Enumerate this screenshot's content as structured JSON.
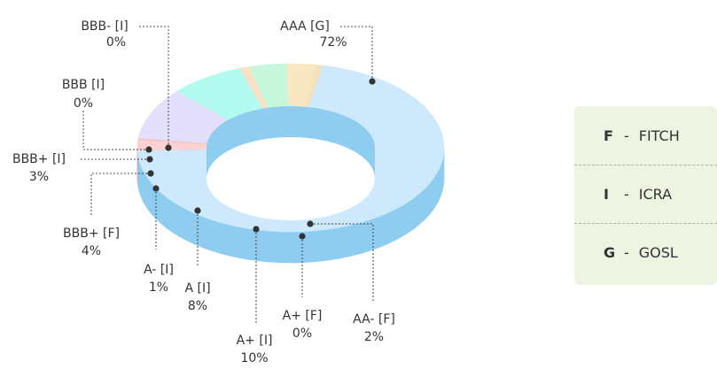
{
  "chart_data": {
    "type": "pie",
    "variant": "3d-donut",
    "title": "",
    "slices": [
      {
        "label": "AAA [G]",
        "percent_label": "72%",
        "value": 72,
        "color": "#cde9fb",
        "side_color": "#8ecdf0"
      },
      {
        "label": "AA- [F]",
        "percent_label": "2%",
        "value": 2,
        "color": "#fbd2d2",
        "side_color": "#f58a8e"
      },
      {
        "label": "A+ [F]",
        "percent_label": "0%",
        "value": 0,
        "color": "#f4c6cc",
        "side_color": "#e06b7b"
      },
      {
        "label": "A+ [I]",
        "percent_label": "10%",
        "value": 10,
        "color": "#e4e0fb",
        "side_color": "#a99be6"
      },
      {
        "label": "A [I]",
        "percent_label": "8%",
        "value": 8,
        "color": "#b3fbf1",
        "side_color": "#3ed9c4"
      },
      {
        "label": "A- [I]",
        "percent_label": "1%",
        "value": 1,
        "color": "#fbe0c4",
        "side_color": "#e08d2f"
      },
      {
        "label": "BBB+ [F]",
        "percent_label": "4%",
        "value": 4,
        "color": "#c6f7dc",
        "side_color": "#7fcf93"
      },
      {
        "label": "BBB+ [I]",
        "percent_label": "3%",
        "value": 3,
        "color": "#f9e7c2",
        "side_color": "#ead09a"
      },
      {
        "label": "BBB [I]",
        "percent_label": "0%",
        "value": 0,
        "color": "#f7e3c0",
        "side_color": "#e8cc98"
      },
      {
        "label": "BBB- [I]",
        "percent_label": "0%",
        "value": 0,
        "color": "#f3e0bd",
        "side_color": "#e5c894"
      }
    ]
  },
  "legend": [
    {
      "code": "F",
      "dash": "-",
      "name": "FITCH"
    },
    {
      "code": "I",
      "dash": "-",
      "name": "ICRA"
    },
    {
      "code": "G",
      "dash": "-",
      "name": "GOSL"
    }
  ]
}
